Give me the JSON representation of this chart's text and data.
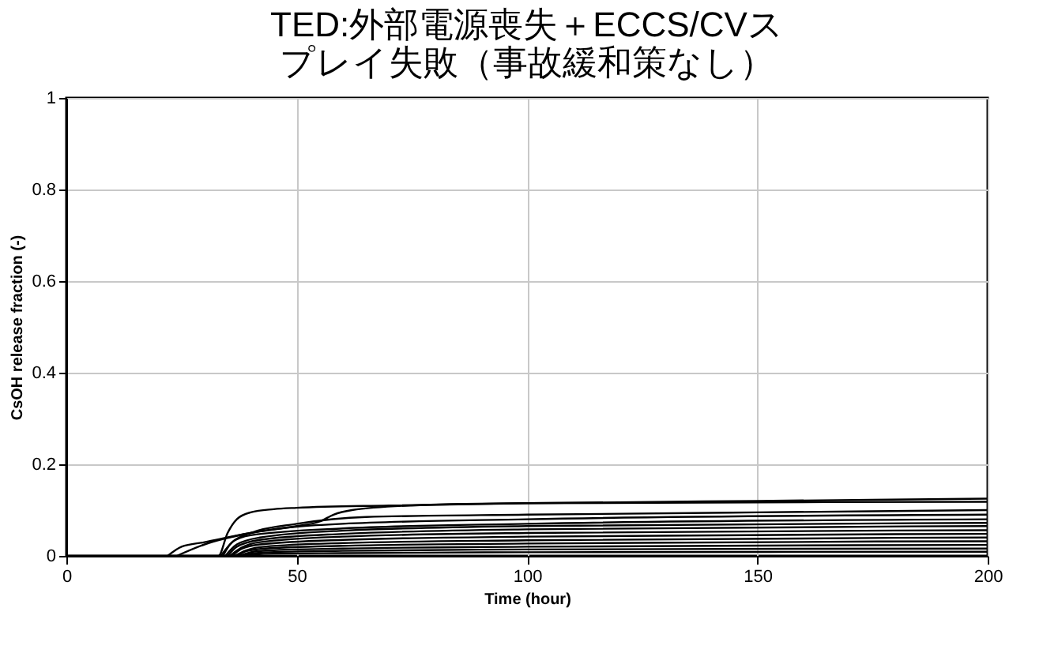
{
  "chart_data": {
    "type": "line",
    "title": "TED:外部電源喪失＋ECCS/CVスプレイ失敗（事故緩和策なし）",
    "xlabel": "Time (hour)",
    "ylabel": "CsOH release fraction (-)",
    "xlim": [
      0,
      200
    ],
    "ylim": [
      0,
      1
    ],
    "xticks": [
      0,
      50,
      100,
      150,
      200
    ],
    "yticks": [
      0,
      0.2,
      0.4,
      0.6,
      0.8,
      1
    ],
    "grid": true,
    "series": [
      {
        "color": "#000000",
        "x": [
          0,
          33,
          35,
          37,
          40,
          45,
          50,
          70,
          100,
          150,
          200
        ],
        "values": [
          0,
          0,
          0.05,
          0.08,
          0.095,
          0.102,
          0.105,
          0.11,
          0.115,
          0.12,
          0.125
        ]
      },
      {
        "color": "#000000",
        "x": [
          22,
          25,
          30,
          40,
          50,
          55,
          58,
          62,
          75,
          100,
          200
        ],
        "values": [
          0,
          0.02,
          0.03,
          0.05,
          0.065,
          0.075,
          0.09,
          0.1,
          0.11,
          0.115,
          0.118
        ]
      },
      {
        "color": "#000000",
        "x": [
          33.5,
          36,
          40,
          50,
          65,
          100,
          150,
          200
        ],
        "values": [
          0,
          0.03,
          0.05,
          0.07,
          0.085,
          0.09,
          0.095,
          0.1
        ]
      },
      {
        "color": "#000000",
        "x": [
          24,
          30,
          40,
          60,
          100,
          200
        ],
        "values": [
          0,
          0.025,
          0.05,
          0.07,
          0.08,
          0.09
        ]
      },
      {
        "color": "#000000",
        "x": [
          34,
          36,
          40,
          60,
          100,
          200
        ],
        "values": [
          0,
          0.03,
          0.045,
          0.06,
          0.07,
          0.08
        ]
      },
      {
        "color": "#000000",
        "x": [
          34.5,
          37,
          42,
          60,
          100,
          200
        ],
        "values": [
          0,
          0.025,
          0.04,
          0.055,
          0.065,
          0.072
        ]
      },
      {
        "color": "#000000",
        "x": [
          35,
          37,
          42,
          60,
          100,
          200
        ],
        "values": [
          0,
          0.02,
          0.035,
          0.048,
          0.058,
          0.065
        ]
      },
      {
        "color": "#000000",
        "x": [
          35.5,
          38,
          42,
          60,
          100,
          200
        ],
        "values": [
          0,
          0.018,
          0.03,
          0.042,
          0.05,
          0.056
        ]
      },
      {
        "color": "#000000",
        "x": [
          36,
          38,
          42,
          60,
          100,
          200
        ],
        "values": [
          0,
          0.015,
          0.025,
          0.035,
          0.042,
          0.048
        ]
      },
      {
        "color": "#000000",
        "x": [
          36.5,
          39,
          43,
          60,
          100,
          200
        ],
        "values": [
          0,
          0.012,
          0.02,
          0.028,
          0.034,
          0.04
        ]
      },
      {
        "color": "#000000",
        "x": [
          37,
          39,
          43,
          60,
          100,
          200
        ],
        "values": [
          0,
          0.01,
          0.016,
          0.022,
          0.027,
          0.032
        ]
      },
      {
        "color": "#000000",
        "x": [
          37.5,
          40,
          44,
          60,
          100,
          200
        ],
        "values": [
          0,
          0.008,
          0.012,
          0.016,
          0.02,
          0.024
        ]
      },
      {
        "color": "#000000",
        "x": [
          38,
          40,
          44,
          60,
          100,
          200
        ],
        "values": [
          0,
          0.005,
          0.008,
          0.011,
          0.014,
          0.016
        ]
      },
      {
        "color": "#000000",
        "x": [
          38.5,
          41,
          45,
          60,
          100,
          200
        ],
        "values": [
          0,
          0.003,
          0.005,
          0.006,
          0.008,
          0.009
        ]
      }
    ]
  }
}
